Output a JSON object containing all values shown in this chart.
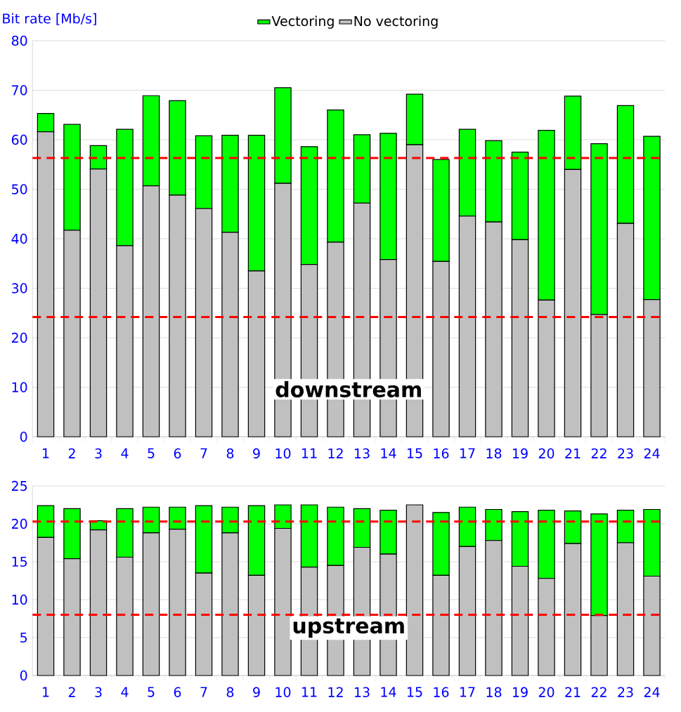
{
  "chart_data": [
    {
      "type": "bar",
      "stacked": true,
      "ylabel": "Bit rate [Mb/s]",
      "legend": "top",
      "grid": "y",
      "categories": [
        "1",
        "2",
        "3",
        "4",
        "5",
        "6",
        "7",
        "8",
        "9",
        "10",
        "11",
        "12",
        "13",
        "14",
        "15",
        "16",
        "17",
        "18",
        "19",
        "20",
        "21",
        "22",
        "23",
        "24"
      ],
      "series": [
        {
          "name": "No vectoring",
          "color": "#c0c0c0",
          "values": [
            61.6,
            41.7,
            54.1,
            38.6,
            50.7,
            48.8,
            46.1,
            41.3,
            33.5,
            51.2,
            34.8,
            39.3,
            47.2,
            35.8,
            59.0,
            35.4,
            44.6,
            43.4,
            39.8,
            27.6,
            54.0,
            24.7,
            43.1,
            27.7
          ]
        },
        {
          "name": "Vectoring",
          "color": "#00ff00",
          "values": [
            3.7,
            21.4,
            4.7,
            23.5,
            18.2,
            19.1,
            14.7,
            19.6,
            27.4,
            19.3,
            23.8,
            26.7,
            13.8,
            25.5,
            10.2,
            20.6,
            17.5,
            16.4,
            17.7,
            34.3,
            14.8,
            34.5,
            23.8,
            33.0
          ]
        }
      ],
      "ylim": [
        0,
        80
      ],
      "yticks": [
        0,
        10,
        20,
        30,
        40,
        50,
        60,
        70,
        80
      ],
      "ref_lines": [
        {
          "axis": "y",
          "value": 56.3,
          "color": "#ff0000",
          "line_style": "dashed"
        },
        {
          "axis": "y",
          "value": 24.2,
          "color": "#ff0000",
          "line_style": "dashed"
        }
      ],
      "annotations": [
        "downstream"
      ]
    },
    {
      "type": "bar",
      "stacked": true,
      "grid": "y",
      "categories": [
        "1",
        "2",
        "3",
        "4",
        "5",
        "6",
        "7",
        "8",
        "9",
        "10",
        "11",
        "12",
        "13",
        "14",
        "15",
        "16",
        "17",
        "18",
        "19",
        "20",
        "21",
        "22",
        "23",
        "24"
      ],
      "series": [
        {
          "color": "#c0c0c0",
          "values": [
            18.2,
            15.4,
            19.2,
            15.6,
            18.8,
            19.3,
            13.5,
            18.8,
            13.2,
            19.4,
            14.3,
            14.5,
            16.9,
            16.0,
            22.5,
            13.2,
            17.0,
            17.8,
            14.4,
            12.8,
            17.4,
            7.9,
            17.5,
            13.1
          ]
        },
        {
          "color": "#00ff00",
          "values": [
            4.2,
            6.6,
            1.2,
            6.4,
            3.4,
            2.9,
            8.9,
            3.4,
            9.2,
            3.1,
            8.2,
            7.7,
            5.1,
            5.8,
            0,
            8.3,
            5.2,
            4.1,
            7.2,
            9.0,
            4.3,
            13.4,
            4.3,
            8.8
          ]
        }
      ],
      "ylim": [
        0,
        25
      ],
      "yticks": [
        0,
        5,
        10,
        15,
        20,
        25
      ],
      "ref_lines": [
        {
          "axis": "y",
          "value": 20.3,
          "color": "#ff0000",
          "line_style": "dashed"
        },
        {
          "axis": "y",
          "value": 8.0,
          "color": "#ff0000",
          "line_style": "dashed"
        }
      ],
      "annotations": [
        "upstream"
      ]
    }
  ]
}
